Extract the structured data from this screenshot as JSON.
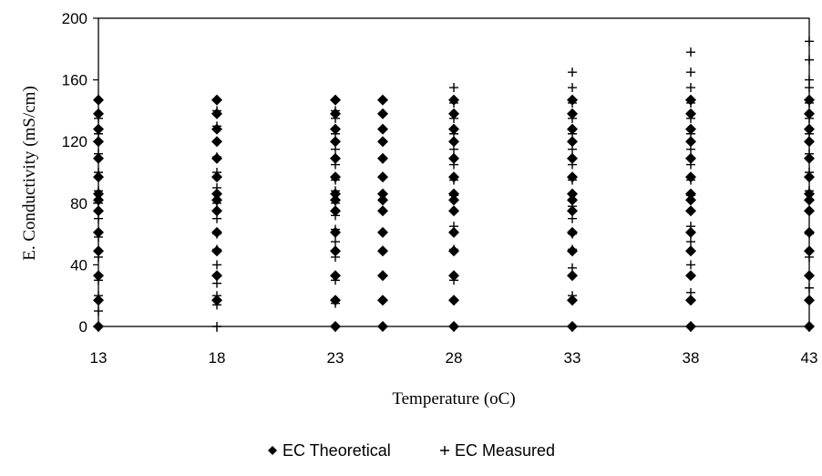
{
  "chart_data": {
    "type": "scatter",
    "title": "",
    "xlabel": "Temperature (oC)",
    "ylabel": "E. Conductivity (mS/cm)",
    "xlim": [
      13,
      43
    ],
    "ylim": [
      0,
      200
    ],
    "x_ticks": [
      13,
      18,
      23,
      28,
      33,
      38,
      43
    ],
    "y_ticks": [
      0,
      40,
      80,
      120,
      160,
      200
    ],
    "grid": false,
    "legend_position": "bottom",
    "series": [
      {
        "name": "EC Theoretical",
        "marker": "diamond",
        "color": "#000000",
        "points": [
          [
            13,
            0
          ],
          [
            13,
            17
          ],
          [
            13,
            33
          ],
          [
            13,
            49
          ],
          [
            13,
            61
          ],
          [
            13,
            75
          ],
          [
            13,
            82
          ],
          [
            13,
            86
          ],
          [
            13,
            97
          ],
          [
            13,
            109
          ],
          [
            13,
            120
          ],
          [
            13,
            128
          ],
          [
            13,
            138
          ],
          [
            13,
            147
          ],
          [
            18,
            17
          ],
          [
            18,
            33
          ],
          [
            18,
            49
          ],
          [
            18,
            61
          ],
          [
            18,
            75
          ],
          [
            18,
            82
          ],
          [
            18,
            86
          ],
          [
            18,
            97
          ],
          [
            18,
            109
          ],
          [
            18,
            120
          ],
          [
            18,
            128
          ],
          [
            18,
            138
          ],
          [
            18,
            147
          ],
          [
            23,
            0
          ],
          [
            23,
            17
          ],
          [
            23,
            33
          ],
          [
            23,
            49
          ],
          [
            23,
            61
          ],
          [
            23,
            75
          ],
          [
            23,
            82
          ],
          [
            23,
            86
          ],
          [
            23,
            97
          ],
          [
            23,
            109
          ],
          [
            23,
            120
          ],
          [
            23,
            128
          ],
          [
            23,
            138
          ],
          [
            23,
            147
          ],
          [
            25,
            0
          ],
          [
            25,
            17
          ],
          [
            25,
            33
          ],
          [
            25,
            49
          ],
          [
            25,
            61
          ],
          [
            25,
            75
          ],
          [
            25,
            82
          ],
          [
            25,
            86
          ],
          [
            25,
            97
          ],
          [
            25,
            109
          ],
          [
            25,
            120
          ],
          [
            25,
            128
          ],
          [
            25,
            138
          ],
          [
            25,
            147
          ],
          [
            28,
            0
          ],
          [
            28,
            17
          ],
          [
            28,
            33
          ],
          [
            28,
            49
          ],
          [
            28,
            61
          ],
          [
            28,
            75
          ],
          [
            28,
            82
          ],
          [
            28,
            86
          ],
          [
            28,
            97
          ],
          [
            28,
            109
          ],
          [
            28,
            120
          ],
          [
            28,
            128
          ],
          [
            28,
            138
          ],
          [
            28,
            147
          ],
          [
            33,
            0
          ],
          [
            33,
            17
          ],
          [
            33,
            33
          ],
          [
            33,
            49
          ],
          [
            33,
            61
          ],
          [
            33,
            75
          ],
          [
            33,
            82
          ],
          [
            33,
            86
          ],
          [
            33,
            97
          ],
          [
            33,
            109
          ],
          [
            33,
            120
          ],
          [
            33,
            128
          ],
          [
            33,
            138
          ],
          [
            33,
            147
          ],
          [
            38,
            0
          ],
          [
            38,
            17
          ],
          [
            38,
            33
          ],
          [
            38,
            49
          ],
          [
            38,
            61
          ],
          [
            38,
            75
          ],
          [
            38,
            82
          ],
          [
            38,
            86
          ],
          [
            38,
            97
          ],
          [
            38,
            109
          ],
          [
            38,
            120
          ],
          [
            38,
            128
          ],
          [
            38,
            138
          ],
          [
            38,
            147
          ],
          [
            43,
            0
          ],
          [
            43,
            17
          ],
          [
            43,
            33
          ],
          [
            43,
            49
          ],
          [
            43,
            61
          ],
          [
            43,
            75
          ],
          [
            43,
            82
          ],
          [
            43,
            86
          ],
          [
            43,
            97
          ],
          [
            43,
            109
          ],
          [
            43,
            120
          ],
          [
            43,
            128
          ],
          [
            43,
            138
          ],
          [
            43,
            147
          ]
        ]
      },
      {
        "name": "EC Measured",
        "marker": "plus",
        "color": "#000000",
        "points": [
          [
            13,
            10
          ],
          [
            13,
            20
          ],
          [
            13,
            30
          ],
          [
            13,
            45
          ],
          [
            13,
            58
          ],
          [
            13,
            70
          ],
          [
            13,
            80
          ],
          [
            13,
            88
          ],
          [
            13,
            100
          ],
          [
            13,
            112
          ],
          [
            13,
            125
          ],
          [
            13,
            135
          ],
          [
            18,
            0
          ],
          [
            18,
            14
          ],
          [
            18,
            20
          ],
          [
            18,
            28
          ],
          [
            18,
            40
          ],
          [
            18,
            50
          ],
          [
            18,
            60
          ],
          [
            18,
            70
          ],
          [
            18,
            80
          ],
          [
            18,
            90
          ],
          [
            18,
            100
          ],
          [
            18,
            110
          ],
          [
            18,
            120
          ],
          [
            18,
            130
          ],
          [
            18,
            140
          ],
          [
            23,
            15
          ],
          [
            23,
            30
          ],
          [
            23,
            45
          ],
          [
            23,
            55
          ],
          [
            23,
            63
          ],
          [
            23,
            72
          ],
          [
            23,
            80
          ],
          [
            23,
            88
          ],
          [
            23,
            95
          ],
          [
            23,
            105
          ],
          [
            23,
            115
          ],
          [
            23,
            125
          ],
          [
            23,
            135
          ],
          [
            23,
            140
          ],
          [
            28,
            30
          ],
          [
            28,
            50
          ],
          [
            28,
            65
          ],
          [
            28,
            75
          ],
          [
            28,
            85
          ],
          [
            28,
            95
          ],
          [
            28,
            105
          ],
          [
            28,
            115
          ],
          [
            28,
            125
          ],
          [
            28,
            135
          ],
          [
            28,
            145
          ],
          [
            28,
            155
          ],
          [
            33,
            20
          ],
          [
            33,
            38
          ],
          [
            33,
            50
          ],
          [
            33,
            60
          ],
          [
            33,
            70
          ],
          [
            33,
            78
          ],
          [
            33,
            86
          ],
          [
            33,
            95
          ],
          [
            33,
            105
          ],
          [
            33,
            115
          ],
          [
            33,
            125
          ],
          [
            33,
            135
          ],
          [
            33,
            145
          ],
          [
            33,
            155
          ],
          [
            33,
            165
          ],
          [
            38,
            22
          ],
          [
            38,
            40
          ],
          [
            38,
            55
          ],
          [
            38,
            65
          ],
          [
            38,
            75
          ],
          [
            38,
            85
          ],
          [
            38,
            95
          ],
          [
            38,
            105
          ],
          [
            38,
            115
          ],
          [
            38,
            125
          ],
          [
            38,
            135
          ],
          [
            38,
            145
          ],
          [
            38,
            155
          ],
          [
            38,
            165
          ],
          [
            38,
            178
          ],
          [
            43,
            25
          ],
          [
            43,
            45
          ],
          [
            43,
            60
          ],
          [
            43,
            75
          ],
          [
            43,
            88
          ],
          [
            43,
            100
          ],
          [
            43,
            112
          ],
          [
            43,
            125
          ],
          [
            43,
            135
          ],
          [
            43,
            145
          ],
          [
            43,
            155
          ],
          [
            43,
            160
          ],
          [
            43,
            173
          ],
          [
            43,
            185
          ]
        ]
      }
    ]
  }
}
